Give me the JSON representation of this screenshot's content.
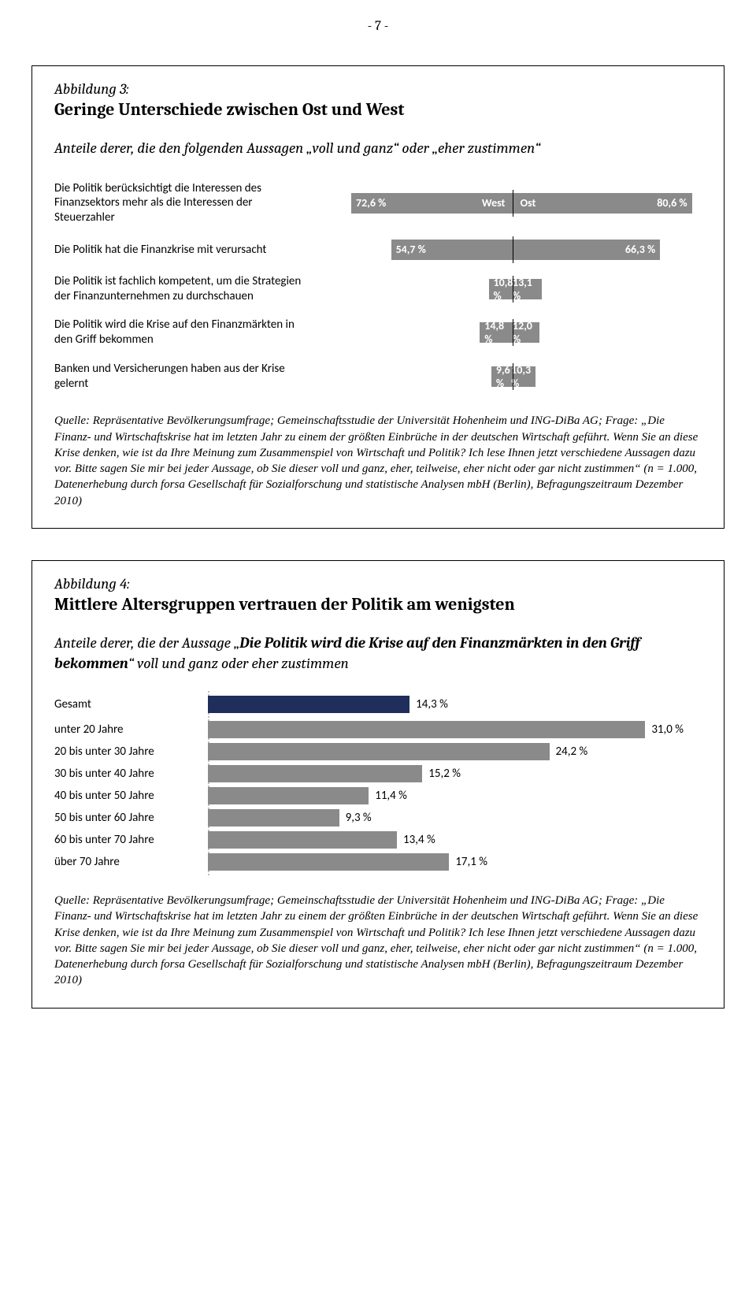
{
  "page_number_label": "- 7 -",
  "colors": {
    "gray_bar": "#8a8a8a",
    "navy_bar": "#1f2e5a",
    "white": "#ffffff",
    "baseline": "#000000",
    "dotted": "#bfbfbf"
  },
  "fig3": {
    "label": "Abbildung 3:",
    "title": "Geringe Unterschiede zwischen Ost und West",
    "subtitle_prefix": "Anteile derer, die den folgenden Aussagen „",
    "subtitle_mid1": "voll und ganz",
    "subtitle_join1": "“ oder „",
    "subtitle_mid2": "eher zustimmen",
    "subtitle_suffix": "“",
    "legend_west": "West",
    "legend_ost": "Ost",
    "max_pct": 85,
    "rows": [
      {
        "label": "Die Politik berücksichtigt die Interessen des Finanzsektors mehr als die Interessen der Steuerzahler",
        "west": 72.6,
        "ost": 80.6,
        "west_txt": "72,6 %",
        "ost_txt": "80,6 %"
      },
      {
        "label": "Die Politik hat die Finanzkrise mit verursacht",
        "west": 54.7,
        "ost": 66.3,
        "west_txt": "54,7 %",
        "ost_txt": "66,3 %"
      },
      {
        "label": "Die Politik ist fachlich kompetent, um die Strategien der Finanzunternehmen zu durchschauen",
        "west": 10.8,
        "ost": 13.1,
        "west_txt": "10,8 %",
        "ost_txt": "13,1 %"
      },
      {
        "label": "Die Politik wird die Krise auf den Finanzmärkten in den Griff bekommen",
        "west": 14.8,
        "ost": 12.0,
        "west_txt": "14,8 %",
        "ost_txt": "12,0 %"
      },
      {
        "label": "Banken und Versicherungen haben aus der Krise gelernt",
        "west": 9.6,
        "ost": 10.3,
        "west_txt": "9,6 %",
        "ost_txt": "10,3 %"
      }
    ],
    "source": "Quelle: Repräsentative Bevölkerungsumfrage; Gemeinschaftsstudie der Universität Hohenheim und ING-DiBa AG; Frage: „Die Finanz- und Wirtschaftskrise hat im letzten Jahr zu einem der größten Einbrüche in der deutschen Wirtschaft geführt. Wenn Sie an diese Krise denken, wie ist da Ihre Meinung zum Zusammenspiel von Wirtschaft und Politik? Ich lese Ihnen jetzt verschiedene Aussagen dazu vor. Bitte sagen Sie mir bei jeder Aussage, ob Sie dieser voll und ganz, eher, teilweise, eher nicht oder gar nicht zustimmen“ (n = 1.000, Datenerhebung durch forsa Gesellschaft für Sozialforschung und statistische Analysen mbH (Berlin), Befragungszeitraum Dezember 2010)"
  },
  "fig4": {
    "label": "Abbildung 4:",
    "title": "Mittlere Altersgruppen vertrauen der Politik am wenigsten",
    "subtitle_prefix": "Anteile derer, die der Aussage „",
    "subtitle_bold": "Die Politik wird die Krise auf den Finanzmärkten in den Griff bekommen",
    "subtitle_suffix": "“ voll und ganz oder eher zustimmen",
    "max_pct": 35,
    "total": {
      "label": "Gesamt",
      "val": 14.3,
      "txt": "14,3 %",
      "color": "navy"
    },
    "rows": [
      {
        "label": "unter 20 Jahre",
        "val": 31.0,
        "txt": "31,0 %"
      },
      {
        "label": "20 bis unter 30 Jahre",
        "val": 24.2,
        "txt": "24,2 %"
      },
      {
        "label": "30 bis unter 40 Jahre",
        "val": 15.2,
        "txt": "15,2 %"
      },
      {
        "label": "40 bis unter 50 Jahre",
        "val": 11.4,
        "txt": "11,4 %"
      },
      {
        "label": "50 bis unter 60 Jahre",
        "val": 9.3,
        "txt": "9,3 %"
      },
      {
        "label": "60 bis unter 70 Jahre",
        "val": 13.4,
        "txt": "13,4 %"
      },
      {
        "label": "über 70 Jahre",
        "val": 17.1,
        "txt": "17,1 %"
      }
    ],
    "source": "Quelle: Repräsentative Bevölkerungsumfrage; Gemeinschaftsstudie der Universität Hohenheim und ING-DiBa AG; Frage: „Die Finanz- und Wirtschaftskrise hat im letzten Jahr zu einem der größten Einbrüche in der deutschen Wirtschaft geführt. Wenn Sie an diese Krise denken, wie ist da Ihre Meinung zum Zusammenspiel von Wirtschaft und Politik? Ich lese Ihnen jetzt verschiedene Aussagen dazu vor. Bitte sagen Sie mir bei jeder Aussage, ob Sie dieser voll und ganz, eher, teilweise, eher nicht oder gar nicht zustimmen“ (n = 1.000, Datenerhebung durch forsa Gesellschaft für Sozialforschung und statistische Analysen mbH (Berlin), Befragungszeitraum Dezember 2010)"
  }
}
